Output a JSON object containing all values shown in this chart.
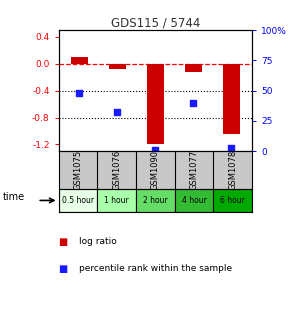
{
  "title": "GDS115 / 5744",
  "samples": [
    "GSM1075",
    "GSM1076",
    "GSM1090",
    "GSM1077",
    "GSM1078"
  ],
  "time_labels": [
    "0.5 hour",
    "1 hour",
    "2 hour",
    "4 hour",
    "6 hour"
  ],
  "log_ratios": [
    0.1,
    -0.08,
    -1.2,
    -0.12,
    -1.05
  ],
  "percentile_ranks": [
    48,
    32,
    1,
    40,
    3
  ],
  "bar_color": "#cc0000",
  "dot_color": "#1a1aff",
  "ylim_left": [
    -1.3,
    0.5
  ],
  "ylim_right": [
    0,
    100
  ],
  "left_ticks": [
    0.4,
    0.0,
    -0.4,
    -0.8,
    -1.2
  ],
  "right_ticks": [
    100,
    75,
    50,
    25,
    0
  ],
  "time_colors": [
    "#e8ffe8",
    "#aaffaa",
    "#66dd66",
    "#33bb33",
    "#00aa00"
  ],
  "gsm_bg_color": "#c8c8c8",
  "title_color": "#333333",
  "legend_red_label": "log ratio",
  "legend_blue_label": "percentile rank within the sample"
}
